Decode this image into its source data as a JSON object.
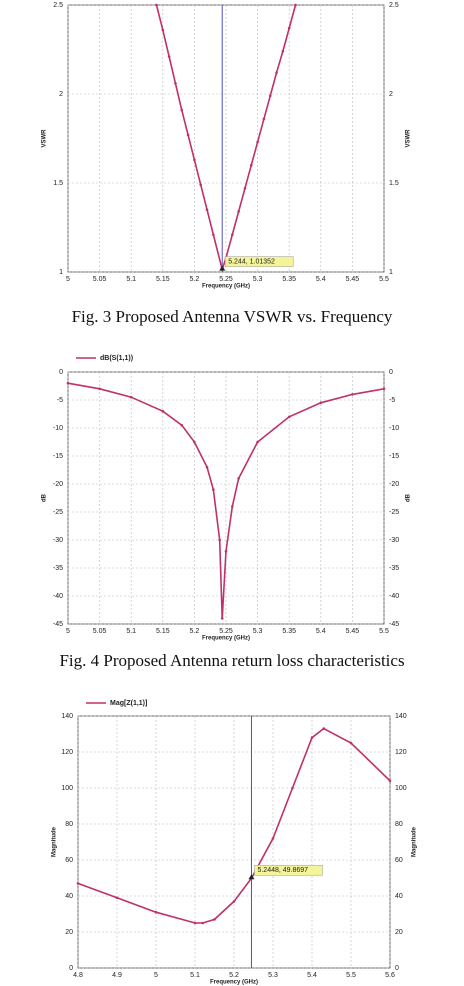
{
  "chart_data": [
    {
      "type": "line",
      "caption": "Fig. 3  Proposed Antenna VSWR vs. Frequency",
      "xlabel": "Frequency (GHz)",
      "ylabel": "VSWR",
      "x": [
        5.14,
        5.15,
        5.16,
        5.17,
        5.18,
        5.19,
        5.2,
        5.21,
        5.22,
        5.23,
        5.244,
        5.25,
        5.26,
        5.27,
        5.28,
        5.29,
        5.3,
        5.31,
        5.32,
        5.33,
        5.34,
        5.35,
        5.36
      ],
      "series": [
        {
          "color": "#c0306a",
          "values": [
            2.5,
            2.36,
            2.21,
            2.06,
            1.91,
            1.77,
            1.63,
            1.49,
            1.35,
            1.21,
            1.01352,
            1.08,
            1.21,
            1.34,
            1.47,
            1.6,
            1.73,
            1.86,
            1.99,
            2.12,
            2.24,
            2.37,
            2.5
          ]
        }
      ],
      "xlim": [
        5,
        5.5
      ],
      "xticks": [
        5,
        5.05,
        5.1,
        5.15,
        5.2,
        5.25,
        5.3,
        5.35,
        5.4,
        5.45,
        5.5
      ],
      "ylim": [
        1,
        2.5
      ],
      "yticks": [
        1,
        1.5,
        2,
        2.5
      ],
      "grid": true,
      "marker": {
        "x": 5.244,
        "y": 1.01352,
        "label": "5.244, 1.01352",
        "color": "#5050c0"
      }
    },
    {
      "type": "line",
      "caption": "Fig. 4 Proposed Antenna return loss characteristics",
      "xlabel": "Frequency (GHz)",
      "ylabel": "dB",
      "x": [
        5,
        5.05,
        5.1,
        5.15,
        5.18,
        5.2,
        5.22,
        5.23,
        5.24,
        5.244,
        5.25,
        5.26,
        5.27,
        5.3,
        5.35,
        5.4,
        5.45,
        5.5
      ],
      "series": [
        {
          "name": "dB(S(1,1))",
          "color": "#c0306a",
          "values": [
            -2,
            -3,
            -4.5,
            -7,
            -9.5,
            -12.5,
            -17,
            -21,
            -30,
            -44,
            -32,
            -24,
            -19,
            -12.5,
            -8,
            -5.5,
            -4,
            -3
          ]
        }
      ],
      "xlim": [
        5,
        5.5
      ],
      "xticks": [
        5,
        5.05,
        5.1,
        5.15,
        5.2,
        5.25,
        5.3,
        5.35,
        5.4,
        5.45,
        5.5
      ],
      "ylim": [
        -45,
        0
      ],
      "yticks": [
        -45,
        -40,
        -35,
        -30,
        -25,
        -20,
        -15,
        -10,
        -5,
        0
      ],
      "grid": true
    },
    {
      "type": "line",
      "xlabel": "Frequency (GHz)",
      "ylabel": "Magnitude",
      "x": [
        4.8,
        4.9,
        5.0,
        5.1,
        5.12,
        5.15,
        5.2,
        5.2448,
        5.3,
        5.35,
        5.4,
        5.43,
        5.5,
        5.6
      ],
      "series": [
        {
          "name": "Mag[Z(1,1)]",
          "color": "#c0306a",
          "values": [
            47,
            39,
            31,
            25,
            25,
            27,
            37,
            49.8697,
            72,
            100,
            128,
            133,
            125,
            104
          ]
        }
      ],
      "xlim": [
        4.8,
        5.6
      ],
      "xticks": [
        4.8,
        4.9,
        5,
        5.1,
        5.2,
        5.3,
        5.4,
        5.5,
        5.6
      ],
      "ylim": [
        0,
        140
      ],
      "yticks": [
        0,
        20,
        40,
        60,
        80,
        100,
        120,
        140
      ],
      "grid": true,
      "marker": {
        "x": 5.2448,
        "y": 49.8697,
        "label": "5.2448, 49.8697",
        "color": "#5050c0"
      }
    }
  ]
}
